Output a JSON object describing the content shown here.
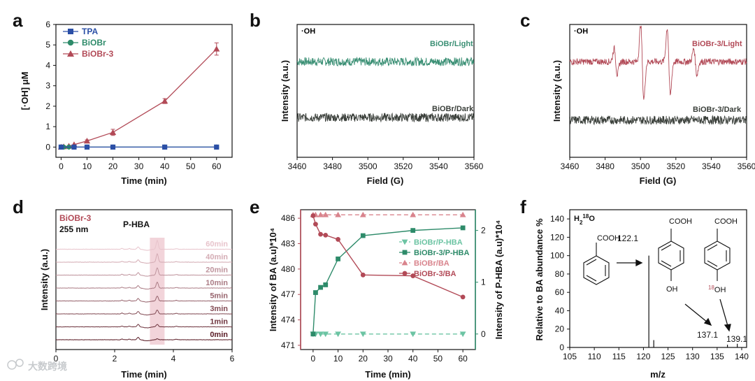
{
  "colors": {
    "tpa": "#2b4fa6",
    "biobr": "#2e8b6a",
    "biobr3": "#b24a57",
    "green_light": "#6cc4a3",
    "red_light": "#d9848d",
    "dark": "#3a3f3a",
    "teal": "#3a8f74",
    "hl": "#e9b7c2"
  },
  "panel_a": {
    "letter": "a",
    "ylabel": "[·OH] μM",
    "xlabel": "Time (min)",
    "legend": [
      "TPA",
      "BiOBr",
      "BiOBr-3"
    ]
  },
  "panel_b": {
    "letter": "b",
    "corner": "·OH",
    "ylabel": "Intensity (a.u.)",
    "xlabel": "Field (G)",
    "labels": [
      "BiOBr/Light",
      "BiOBr/Dark"
    ]
  },
  "panel_c": {
    "letter": "c",
    "corner": "·OH",
    "ylabel": "Intensity (a.u.)",
    "xlabel": "Field (G)",
    "labels": [
      "BiOBr-3/Light",
      "BiOBr-3/Dark"
    ]
  },
  "panel_d": {
    "letter": "d",
    "sample": "BiOBr-3",
    "wavelength": "255 nm",
    "compound": "P-HBA",
    "ylabel": "Intensity (a.u.)",
    "xlabel": "Time (min)"
  },
  "panel_e": {
    "letter": "e",
    "ylabel_left": "Intensity of BA (a.u)*10⁴",
    "ylabel_right": "Intensity of P-HBA (a.u)*10⁴",
    "xlabel": "Time (min)",
    "legend": [
      "BiOBr/P-HBA",
      "BiOBr-3/P-HBA",
      "BiOBr/BA",
      "BiOBr-3/BA"
    ]
  },
  "panel_f": {
    "letter": "f",
    "isotope_prefix": "H",
    "isotope_sub": "2",
    "isotope_sup": "18",
    "isotope_suffix": "O",
    "ylabel": "Relative to BA abundance %",
    "xlabel": "m/z",
    "peak_labels": [
      "122.1",
      "137.1",
      "139.1"
    ],
    "cooh": "COOH",
    "oh": "OH",
    "oh_sup": "18"
  },
  "watermark": "大数跨境",
  "chart_data": [
    {
      "panel": "a",
      "type": "line",
      "xlabel": "Time (min)",
      "ylabel": "[·OH] μM",
      "xlim": [
        -2,
        66
      ],
      "ylim": [
        -0.5,
        6
      ],
      "xticks": [
        0,
        10,
        20,
        30,
        40,
        50,
        60
      ],
      "yticks": [
        0,
        1,
        2,
        3,
        4,
        5,
        6
      ],
      "series": [
        {
          "name": "TPA",
          "x": [
            0,
            5,
            10,
            20,
            40,
            60
          ],
          "y": [
            0,
            0,
            0,
            0,
            0,
            0
          ]
        },
        {
          "name": "BiOBr",
          "x": [
            0,
            1,
            3,
            5,
            10,
            20,
            40,
            60
          ],
          "y": [
            0,
            0,
            0,
            0,
            0,
            0,
            0,
            0
          ]
        },
        {
          "name": "BiOBr-3",
          "x": [
            0,
            1,
            3,
            5,
            10,
            20,
            40,
            60
          ],
          "y": [
            0,
            0.02,
            0.05,
            0.12,
            0.3,
            0.72,
            2.25,
            4.8
          ],
          "err": [
            0,
            0,
            0,
            0,
            0.05,
            0.15,
            0.12,
            0.3
          ]
        }
      ]
    },
    {
      "panel": "b",
      "type": "line",
      "xlabel": "Field (G)",
      "ylabel": "Intensity (a.u.)",
      "xlim": [
        3460,
        3560
      ],
      "xticks": [
        3460,
        3480,
        3500,
        3520,
        3540,
        3560
      ],
      "series": [
        {
          "name": "BiOBr/Light",
          "level": 0.72,
          "noise": 0.02
        },
        {
          "name": "BiOBr/Dark",
          "level": 0.3,
          "noise": 0.02
        }
      ]
    },
    {
      "panel": "c",
      "type": "line",
      "xlabel": "Field (G)",
      "ylabel": "Intensity (a.u.)",
      "xlim": [
        3460,
        3560
      ],
      "xticks": [
        3460,
        3480,
        3500,
        3520,
        3540,
        3560
      ],
      "series": [
        {
          "name": "BiOBr-3/Light",
          "level": 0.72,
          "noise": 0.015,
          "peaks": [
            {
              "x": 3486,
              "amp": 0.35
            },
            {
              "x": 3501,
              "amp": 1.0
            },
            {
              "x": 3516,
              "amp": 0.9
            },
            {
              "x": 3531,
              "amp": 0.35
            }
          ]
        },
        {
          "name": "BiOBr-3/Dark",
          "level": 0.28,
          "noise": 0.02
        }
      ]
    },
    {
      "panel": "d",
      "type": "line",
      "xlabel": "Time (min)",
      "ylabel": "Intensity (a.u.)",
      "xlim": [
        0,
        6
      ],
      "xticks": [
        0,
        2,
        4,
        6
      ],
      "highlight": [
        3.2,
        3.7
      ],
      "series": [
        {
          "name": "0min",
          "peak": 0.2
        },
        {
          "name": "1min",
          "peak": 0.5
        },
        {
          "name": "3min",
          "peak": 0.8
        },
        {
          "name": "5min",
          "peak": 1.0
        },
        {
          "name": "10min",
          "peak": 1.2
        },
        {
          "name": "20min",
          "peak": 1.5
        },
        {
          "name": "40min",
          "peak": 1.7
        },
        {
          "name": "60min",
          "peak": 1.8
        }
      ]
    },
    {
      "panel": "e",
      "type": "line",
      "xlabel": "Time (min)",
      "ylabel_left": "Intensity of BA (a.u)*10⁴",
      "ylabel_right": "Intensity of P-HBA (a.u)*10⁴",
      "xlim": [
        -5,
        65
      ],
      "xticks": [
        0,
        10,
        20,
        30,
        40,
        50,
        60
      ],
      "ylim_left": [
        470.5,
        487
      ],
      "yticks_left": [
        471,
        474,
        477,
        480,
        483,
        486
      ],
      "ylim_right": [
        -0.3,
        2.4
      ],
      "yticks_right": [
        0,
        1,
        2
      ],
      "series": [
        {
          "name": "BiOBr/P-HBA",
          "axis": "right",
          "dashed": true,
          "x": [
            0,
            1,
            3,
            5,
            10,
            20,
            40,
            60
          ],
          "y": [
            0,
            0,
            0,
            0,
            0,
            0,
            0,
            0
          ]
        },
        {
          "name": "BiOBr-3/P-HBA",
          "axis": "right",
          "dashed": false,
          "x": [
            0,
            1,
            3,
            5,
            10,
            20,
            40,
            60
          ],
          "y": [
            0,
            0.8,
            0.9,
            0.95,
            1.45,
            1.9,
            2.0,
            2.05
          ]
        },
        {
          "name": "BiOBr/BA",
          "axis": "left",
          "dashed": true,
          "x": [
            0,
            1,
            3,
            5,
            10,
            20,
            40,
            60
          ],
          "y": [
            486.4,
            486.4,
            486.4,
            486.4,
            486.4,
            486.4,
            486.4,
            486.4
          ]
        },
        {
          "name": "BiOBr-3/BA",
          "axis": "left",
          "dashed": false,
          "x": [
            0,
            1,
            3,
            5,
            10,
            20,
            40,
            60
          ],
          "y": [
            486.3,
            485.3,
            484.1,
            484.0,
            483.5,
            479.3,
            479.2,
            476.7
          ]
        }
      ]
    },
    {
      "panel": "f",
      "type": "bar",
      "xlabel": "m/z",
      "ylabel": "Relative to BA abundance %",
      "xlim": [
        105,
        141
      ],
      "ylim": [
        0,
        150
      ],
      "xticks": [
        105,
        110,
        115,
        120,
        125,
        130,
        135,
        140
      ],
      "yticks": [
        0,
        20,
        40,
        60,
        80,
        100,
        120,
        140
      ],
      "x": [
        121.1,
        122.1,
        137.1,
        139.1
      ],
      "values": [
        100,
        8,
        3,
        4
      ]
    }
  ]
}
